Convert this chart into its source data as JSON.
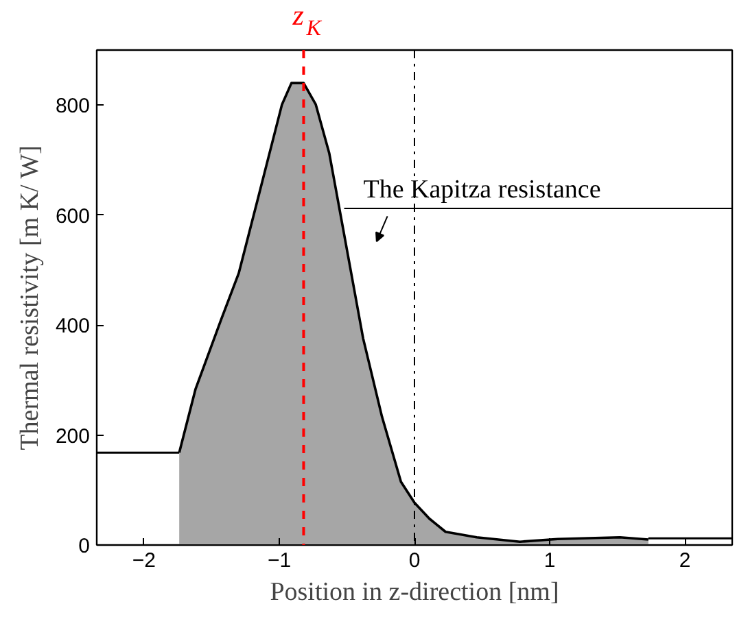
{
  "chart_data": {
    "type": "area",
    "xlabel": "Position in z-direction [nm]",
    "ylabel": "Thermal resistivity [m K/ W]",
    "xlim": [
      -2.35,
      2.35
    ],
    "ylim": [
      0,
      900
    ],
    "xticks": [
      -2,
      -1,
      0,
      1,
      2
    ],
    "yticks": [
      0,
      200,
      400,
      600,
      800
    ],
    "grid": false,
    "series": [
      {
        "type": "line",
        "color": "#000000",
        "x": [
          -2.35,
          -1.74
        ],
        "values": [
          168,
          168
        ]
      },
      {
        "color": "#a6a6a6",
        "x": [
          -1.74,
          -1.62,
          -1.43,
          -1.3,
          -1.16,
          -0.98,
          -0.91,
          -0.82,
          -0.73,
          -0.63,
          -0.53,
          -0.38,
          -0.24,
          -0.1,
          0.0,
          0.11,
          0.23,
          0.46,
          0.78,
          1.06,
          1.52,
          1.73
        ],
        "values": [
          168,
          283,
          410,
          494,
          628,
          801,
          840,
          840,
          801,
          712,
          578,
          376,
          233,
          115,
          77,
          48,
          24,
          14,
          6,
          11,
          14,
          10
        ]
      },
      {
        "type": "line",
        "color": "#000000",
        "x": [
          1.73,
          2.35
        ],
        "values": [
          12,
          12
        ]
      }
    ],
    "ref_lines": [
      {
        "axis": "x",
        "value": -0.82,
        "label": "z$_{K}$",
        "color": "#ff0000",
        "line_style": "dashed"
      },
      {
        "axis": "x",
        "value": 0,
        "label": null,
        "color": "#000000",
        "line_style": "dashdot"
      }
    ],
    "annotations": [
      "The Kapitza resistance"
    ]
  }
}
